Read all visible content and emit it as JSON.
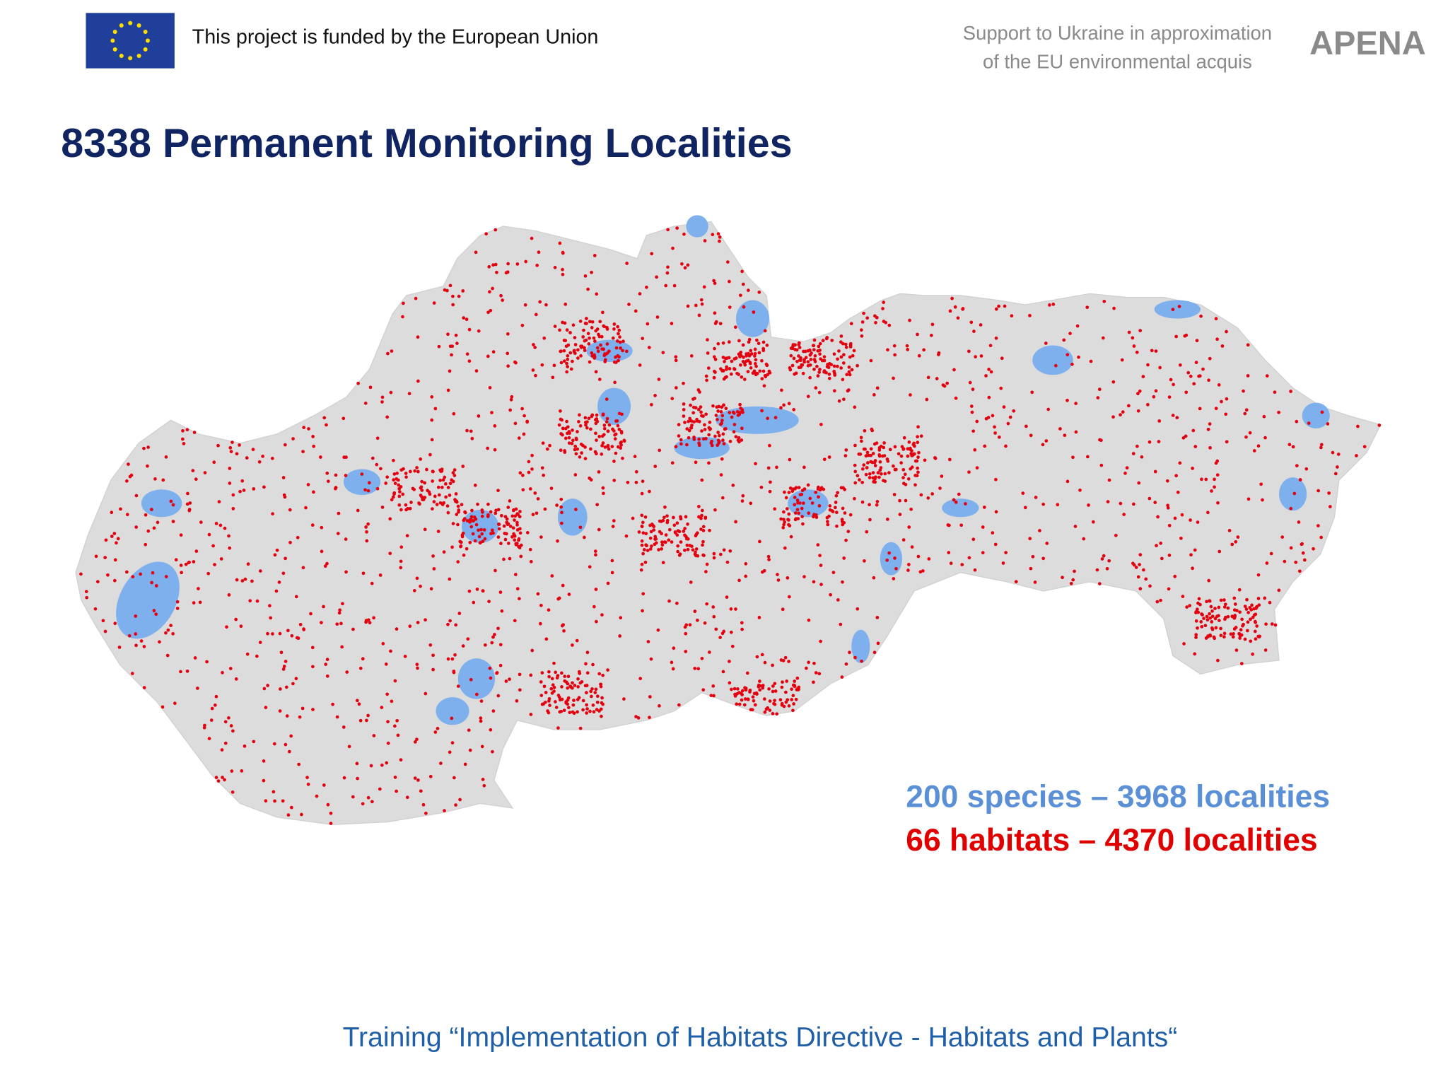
{
  "header": {
    "funding_note": "This project is funded by the European Union",
    "project_lines": [
      "Support to Ukraine in approximation",
      "of the EU environmental acquis"
    ],
    "project_logo": "APENA"
  },
  "title": "8338 Permanent Monitoring Localities",
  "legend": {
    "species": "200 species – 3968 localities",
    "habitats": "66 habitats – 4370 localities"
  },
  "footer": "Training “Implementation of Habitats Directive - Habitats and Plants“"
}
